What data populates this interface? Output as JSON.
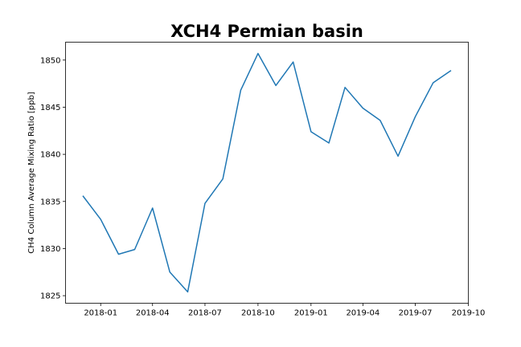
{
  "chart_data": {
    "type": "line",
    "title": "XCH4 Permian basin",
    "xlabel": "",
    "ylabel": "CH4 Column Average Mixing Ratio [ppb]",
    "x_type": "date",
    "xlim": [
      "2017-11-01",
      "2019-10-01"
    ],
    "ylim": [
      1824.2,
      1851.9
    ],
    "xticks": [
      "2018-01",
      "2018-04",
      "2018-07",
      "2018-10",
      "2019-01",
      "2019-04",
      "2019-07",
      "2019-10"
    ],
    "yticks": [
      1825,
      1830,
      1835,
      1840,
      1845,
      1850
    ],
    "grid": false,
    "legend": "none",
    "series": [
      {
        "color": "#1f77b4",
        "x": [
          "2017-12-01",
          "2018-01-01",
          "2018-02-01",
          "2018-03-01",
          "2018-04-01",
          "2018-05-01",
          "2018-06-01",
          "2018-07-01",
          "2018-08-01",
          "2018-09-01",
          "2018-10-01",
          "2018-11-01",
          "2018-12-01",
          "2019-01-01",
          "2019-02-01",
          "2019-03-01",
          "2019-04-01",
          "2019-05-01",
          "2019-06-01",
          "2019-07-01",
          "2019-08-01",
          "2019-09-01"
        ],
        "values": [
          1835.6,
          1833.1,
          1829.4,
          1829.9,
          1834.3,
          1827.5,
          1825.4,
          1834.8,
          1837.4,
          1846.8,
          1850.7,
          1847.3,
          1849.8,
          1842.4,
          1841.2,
          1847.1,
          1844.9,
          1843.6,
          1839.8,
          1844.0,
          1847.6,
          1848.9
        ]
      }
    ]
  }
}
